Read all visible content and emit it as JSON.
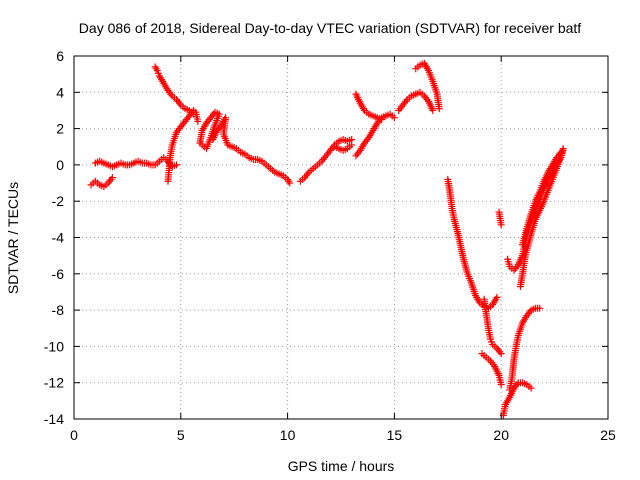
{
  "chart_data": {
    "type": "scatter",
    "title": "Day 086 of 2018, Sidereal Day-to-day VTEC variation (SDTVAR) for receiver batf",
    "xlabel": "GPS time / hours",
    "ylabel": "SDTVAR / TECUs",
    "xlim": [
      0,
      25
    ],
    "ylim": [
      -14,
      6
    ],
    "xticks": [
      0,
      5,
      10,
      15,
      20,
      25
    ],
    "yticks": [
      -14,
      -12,
      -10,
      -8,
      -6,
      -4,
      -2,
      0,
      2,
      4,
      6
    ],
    "grid": true,
    "legend": "none",
    "marker": "+",
    "marker_color": "#ff0000",
    "series": [
      {
        "points": [
          [
            0.8,
            -1.1
          ],
          [
            1.0,
            -0.9
          ],
          [
            1.2,
            -1.1
          ],
          [
            1.4,
            -1.2
          ],
          [
            1.6,
            -1.0
          ],
          [
            1.8,
            -0.7
          ]
        ]
      },
      {
        "points": [
          [
            1.0,
            0.1
          ],
          [
            1.2,
            0.2
          ],
          [
            1.4,
            0.1
          ],
          [
            1.6,
            0.0
          ],
          [
            1.8,
            -0.1
          ],
          [
            2.0,
            0.0
          ],
          [
            2.2,
            0.1
          ],
          [
            2.4,
            0.0
          ],
          [
            2.6,
            0.0
          ],
          [
            2.8,
            0.1
          ],
          [
            3.0,
            0.2
          ],
          [
            3.2,
            0.1
          ],
          [
            3.4,
            0.1
          ],
          [
            3.6,
            0.0
          ],
          [
            3.8,
            0.0
          ],
          [
            4.0,
            0.2
          ],
          [
            4.2,
            0.4
          ],
          [
            4.4,
            0.2
          ],
          [
            4.6,
            -0.1
          ],
          [
            4.8,
            0.0
          ]
        ]
      },
      {
        "points": [
          [
            3.8,
            5.4
          ],
          [
            3.9,
            5.2
          ],
          [
            4.0,
            4.9
          ],
          [
            4.2,
            4.5
          ],
          [
            4.4,
            4.1
          ],
          [
            4.6,
            3.8
          ],
          [
            4.8,
            3.6
          ],
          [
            5.0,
            3.3
          ],
          [
            5.2,
            3.1
          ],
          [
            5.4,
            3.0
          ],
          [
            5.6,
            2.8
          ]
        ]
      },
      {
        "points": [
          [
            4.4,
            -0.9
          ],
          [
            4.5,
            0.4
          ],
          [
            4.6,
            1.1
          ],
          [
            4.8,
            1.8
          ],
          [
            5.0,
            2.1
          ],
          [
            5.2,
            2.4
          ],
          [
            5.4,
            2.7
          ],
          [
            5.6,
            3.0
          ],
          [
            5.7,
            2.9
          ],
          [
            5.8,
            2.4
          ]
        ]
      },
      {
        "points": [
          [
            5.9,
            1.2
          ],
          [
            6.0,
            1.9
          ],
          [
            6.2,
            2.3
          ],
          [
            6.4,
            2.6
          ],
          [
            6.6,
            2.9
          ],
          [
            6.8,
            2.8
          ],
          [
            6.6,
            2.2
          ],
          [
            6.4,
            1.5
          ],
          [
            6.2,
            0.9
          ],
          [
            6.0,
            1.1
          ]
        ]
      },
      {
        "points": [
          [
            6.5,
            1.4
          ],
          [
            6.7,
            1.9
          ],
          [
            6.9,
            2.2
          ],
          [
            7.1,
            2.6
          ],
          [
            7.0,
            1.7
          ],
          [
            7.2,
            1.1
          ],
          [
            7.4,
            1.0
          ],
          [
            7.6,
            0.9
          ],
          [
            7.8,
            0.7
          ],
          [
            8.0,
            0.6
          ],
          [
            8.2,
            0.4
          ],
          [
            8.4,
            0.3
          ],
          [
            8.6,
            0.3
          ],
          [
            8.8,
            0.2
          ],
          [
            9.0,
            0.0
          ],
          [
            9.2,
            -0.2
          ],
          [
            9.4,
            -0.4
          ],
          [
            9.6,
            -0.5
          ],
          [
            9.8,
            -0.6
          ],
          [
            10.0,
            -0.8
          ],
          [
            10.1,
            -1.0
          ]
        ]
      },
      {
        "points": [
          [
            10.6,
            -0.9
          ],
          [
            10.8,
            -0.7
          ],
          [
            11.0,
            -0.4
          ],
          [
            11.2,
            -0.2
          ],
          [
            11.4,
            0.0
          ],
          [
            11.6,
            0.2
          ],
          [
            11.8,
            0.5
          ],
          [
            12.0,
            0.8
          ],
          [
            12.2,
            1.1
          ],
          [
            12.4,
            1.3
          ],
          [
            12.6,
            1.4
          ],
          [
            12.8,
            1.3
          ],
          [
            13.0,
            1.4
          ]
        ]
      },
      {
        "points": [
          [
            12.2,
            1.0
          ],
          [
            12.4,
            0.9
          ],
          [
            12.6,
            0.8
          ],
          [
            12.8,
            0.9
          ],
          [
            13.0,
            1.1
          ]
        ]
      },
      {
        "points": [
          [
            13.2,
            3.9
          ],
          [
            13.4,
            3.4
          ],
          [
            13.6,
            3.0
          ],
          [
            13.8,
            2.8
          ],
          [
            14.0,
            2.7
          ],
          [
            14.2,
            2.6
          ],
          [
            14.4,
            2.5
          ]
        ]
      },
      {
        "points": [
          [
            13.2,
            0.5
          ],
          [
            13.4,
            0.8
          ],
          [
            13.6,
            1.2
          ],
          [
            13.8,
            1.5
          ],
          [
            14.0,
            1.9
          ],
          [
            14.2,
            2.3
          ],
          [
            14.4,
            2.6
          ],
          [
            14.6,
            2.7
          ],
          [
            14.8,
            2.8
          ],
          [
            15.0,
            2.6
          ]
        ]
      },
      {
        "points": [
          [
            15.2,
            3.0
          ],
          [
            15.4,
            3.3
          ],
          [
            15.6,
            3.6
          ],
          [
            15.8,
            3.8
          ],
          [
            16.0,
            3.9
          ],
          [
            16.2,
            4.0
          ],
          [
            16.4,
            3.8
          ],
          [
            16.6,
            3.5
          ],
          [
            16.8,
            3.0
          ]
        ]
      },
      {
        "points": [
          [
            16.0,
            5.3
          ],
          [
            16.2,
            5.5
          ],
          [
            16.4,
            5.6
          ],
          [
            16.6,
            5.2
          ],
          [
            16.8,
            4.6
          ],
          [
            17.0,
            3.9
          ],
          [
            17.1,
            3.1
          ]
        ]
      },
      {
        "points": [
          [
            17.5,
            -0.8
          ],
          [
            17.6,
            -1.5
          ],
          [
            17.7,
            -2.4
          ],
          [
            17.8,
            -3.0
          ],
          [
            18.0,
            -3.9
          ],
          [
            18.2,
            -5.0
          ],
          [
            18.4,
            -5.9
          ],
          [
            18.6,
            -6.5
          ],
          [
            18.8,
            -7.2
          ],
          [
            19.0,
            -7.6
          ],
          [
            19.2,
            -7.8
          ],
          [
            19.4,
            -7.9
          ],
          [
            19.6,
            -7.7
          ],
          [
            19.8,
            -7.3
          ]
        ]
      },
      {
        "points": [
          [
            19.2,
            -7.4
          ],
          [
            19.3,
            -8.2
          ],
          [
            19.4,
            -9.0
          ],
          [
            19.5,
            -9.6
          ],
          [
            19.6,
            -9.9
          ],
          [
            19.8,
            -10.1
          ],
          [
            20.0,
            -10.4
          ]
        ]
      },
      {
        "points": [
          [
            19.1,
            -10.4
          ],
          [
            19.3,
            -10.6
          ],
          [
            19.5,
            -10.8
          ],
          [
            19.7,
            -11.1
          ],
          [
            19.9,
            -11.6
          ],
          [
            20.0,
            -12.1
          ]
        ]
      },
      {
        "points": [
          [
            19.9,
            -2.6
          ],
          [
            20.0,
            -3.3
          ]
        ]
      },
      {
        "points": [
          [
            20.1,
            -13.8
          ],
          [
            20.2,
            -13.2
          ],
          [
            20.4,
            -12.8
          ],
          [
            20.6,
            -12.3
          ],
          [
            20.8,
            -12.0
          ],
          [
            21.0,
            -12.0
          ],
          [
            21.2,
            -12.1
          ],
          [
            21.4,
            -12.3
          ]
        ]
      },
      {
        "points": [
          [
            20.4,
            -12.4
          ],
          [
            20.5,
            -11.8
          ],
          [
            20.6,
            -10.7
          ],
          [
            20.7,
            -10.0
          ],
          [
            20.8,
            -9.4
          ],
          [
            21.0,
            -8.7
          ],
          [
            21.2,
            -8.3
          ],
          [
            21.4,
            -8.0
          ],
          [
            21.6,
            -7.9
          ],
          [
            21.8,
            -7.9
          ]
        ]
      },
      {
        "points": [
          [
            20.3,
            -5.2
          ],
          [
            20.4,
            -5.6
          ],
          [
            20.6,
            -5.8
          ],
          [
            20.8,
            -5.5
          ],
          [
            21.0,
            -5.0
          ],
          [
            21.1,
            -4.4
          ],
          [
            21.2,
            -3.8
          ],
          [
            21.4,
            -3.1
          ],
          [
            21.6,
            -2.5
          ],
          [
            21.8,
            -1.9
          ],
          [
            22.0,
            -1.3
          ],
          [
            22.2,
            -0.8
          ],
          [
            22.4,
            -0.4
          ],
          [
            22.6,
            0.0
          ],
          [
            22.8,
            0.4
          ],
          [
            22.9,
            0.8
          ]
        ]
      },
      {
        "points": [
          [
            20.9,
            -6.7
          ],
          [
            21.0,
            -6.0
          ],
          [
            21.1,
            -5.2
          ],
          [
            21.2,
            -4.7
          ],
          [
            21.4,
            -3.8
          ],
          [
            21.6,
            -3.0
          ],
          [
            21.8,
            -2.5
          ],
          [
            22.0,
            -2.0
          ],
          [
            22.2,
            -1.4
          ],
          [
            22.4,
            -0.8
          ],
          [
            22.6,
            -0.2
          ],
          [
            22.8,
            0.5
          ],
          [
            22.9,
            0.9
          ]
        ]
      },
      {
        "points": [
          [
            21.0,
            -4.4
          ],
          [
            21.2,
            -3.5
          ],
          [
            21.4,
            -2.7
          ],
          [
            21.6,
            -2.0
          ],
          [
            21.8,
            -1.5
          ],
          [
            22.0,
            -0.9
          ],
          [
            22.2,
            -0.4
          ],
          [
            22.4,
            0.0
          ],
          [
            22.6,
            0.4
          ],
          [
            22.8,
            0.7
          ]
        ]
      }
    ]
  }
}
